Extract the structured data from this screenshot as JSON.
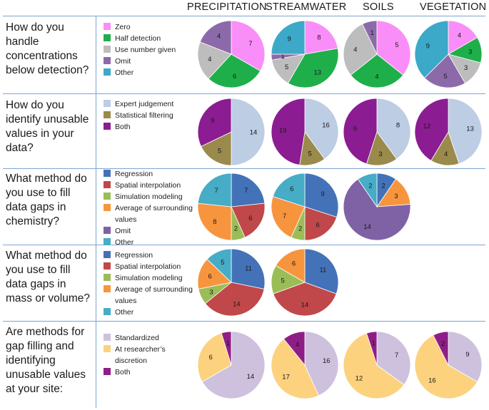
{
  "columns": [
    "PRECIPITATION",
    "STREAMWATER",
    "SOILS",
    "VEGETATION"
  ],
  "chart_data": [
    {
      "type": "pie",
      "question": "How do you handle concentrations below detection?",
      "legend": [
        {
          "label": "Zero",
          "color": "#fa8ef8"
        },
        {
          "label": "Half detection",
          "color": "#1faf4a"
        },
        {
          "label": "Use number given",
          "color": "#bdbdbd"
        },
        {
          "label": "Omit",
          "color": "#8c6aaa"
        },
        {
          "label": "Other",
          "color": "#3ca9c8"
        }
      ],
      "pies": [
        {
          "column": "PRECIPITATION",
          "values": [
            7,
            6,
            4,
            4,
            0
          ]
        },
        {
          "column": "STREAMWATER",
          "values": [
            8,
            13,
            5,
            1,
            9
          ]
        },
        {
          "column": "SOILS",
          "values": [
            5,
            4,
            4,
            1,
            0
          ]
        },
        {
          "column": "VEGETATION",
          "values": [
            4,
            3,
            3,
            5,
            9
          ]
        }
      ]
    },
    {
      "type": "pie",
      "question": "How do you identify unusable values in your data?",
      "legend": [
        {
          "label": "Expert judgement",
          "color": "#bccde4"
        },
        {
          "label": "Statistical filtering",
          "color": "#9a8a4c"
        },
        {
          "label": "Both",
          "color": "#8c1c92"
        }
      ],
      "pies": [
        {
          "column": "PRECIPITATION",
          "values": [
            14,
            5,
            9
          ]
        },
        {
          "column": "STREAMWATER",
          "values": [
            16,
            5,
            19
          ]
        },
        {
          "column": "SOILS",
          "values": [
            8,
            3,
            9
          ]
        },
        {
          "column": "VEGETATION",
          "values": [
            13,
            4,
            12
          ]
        }
      ]
    },
    {
      "type": "pie",
      "question": "What method do you use to fill data gaps in chemistry?",
      "legend": [
        {
          "label": "Regression",
          "color": "#4472b8"
        },
        {
          "label": "Spatial interpolation",
          "color": "#c0484a"
        },
        {
          "label": "Simulation modeling",
          "color": "#9bbd58"
        },
        {
          "label": "Average of surrounding values",
          "color": "#f7953f"
        },
        {
          "label": "Omit",
          "color": "#7f62a6"
        },
        {
          "label": "Other",
          "color": "#47acc6"
        }
      ],
      "pies": [
        {
          "column": "PRECIPITATION",
          "values": [
            7,
            6,
            2,
            8,
            0,
            7
          ]
        },
        {
          "column": "STREAMWATER",
          "values": [
            9,
            6,
            2,
            7,
            0,
            6
          ]
        },
        {
          "column": "SOILS",
          "values": [
            2,
            0,
            0,
            3,
            14,
            2
          ]
        }
      ]
    },
    {
      "type": "pie",
      "question": "What method do you use to fill data gaps in mass or volume?",
      "legend": [
        {
          "label": "Regression",
          "color": "#4472b8"
        },
        {
          "label": "Spatial interpolation",
          "color": "#c0484a"
        },
        {
          "label": "Simulation modeling",
          "color": "#9bbd58"
        },
        {
          "label": "Average of surrounding values",
          "color": "#f7953f"
        },
        {
          "label": "Other",
          "color": "#47acc6"
        }
      ],
      "pies": [
        {
          "column": "PRECIPITATION",
          "values": [
            11,
            14,
            3,
            6,
            5
          ]
        },
        {
          "column": "STREAMWATER",
          "values": [
            11,
            14,
            5,
            6,
            0
          ]
        }
      ]
    },
    {
      "type": "pie",
      "question": "Are methods for gap filling and identifying unusable values at your site:",
      "legend": [
        {
          "label": "Standardized",
          "color": "#cdc1dd"
        },
        {
          "label": "At researcher’s discretion",
          "color": "#fcd27f"
        },
        {
          "label": "Both",
          "color": "#8e1e86"
        }
      ],
      "pies": [
        {
          "column": "PRECIPITATION",
          "values": [
            14,
            6,
            1
          ]
        },
        {
          "column": "STREAMWATER",
          "values": [
            16,
            17,
            4
          ]
        },
        {
          "column": "SOILS",
          "values": [
            7,
            12,
            1
          ]
        },
        {
          "column": "VEGETATION",
          "values": [
            9,
            16,
            2
          ]
        }
      ]
    }
  ]
}
